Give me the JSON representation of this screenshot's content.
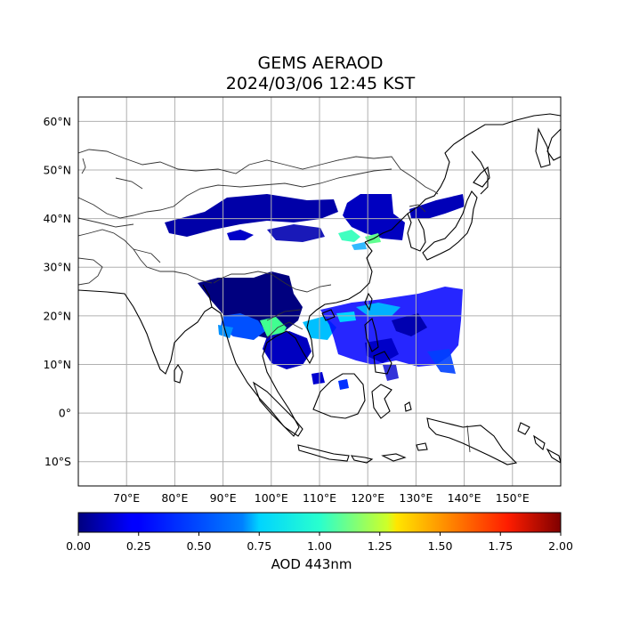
{
  "title": "GEMS AERAOD",
  "subtitle": "2024/03/06 12:45 KST",
  "map": {
    "lon_range": [
      60,
      160
    ],
    "lat_range": [
      -15,
      65
    ],
    "lon_ticks": [
      {
        "value": 70,
        "label": "70°E"
      },
      {
        "value": 80,
        "label": "80°E"
      },
      {
        "value": 90,
        "label": "90°E"
      },
      {
        "value": 100,
        "label": "100°E"
      },
      {
        "value": 110,
        "label": "110°E"
      },
      {
        "value": 120,
        "label": "120°E"
      },
      {
        "value": 130,
        "label": "130°E"
      },
      {
        "value": 140,
        "label": "140°E"
      },
      {
        "value": 150,
        "label": "150°E"
      }
    ],
    "lat_ticks": [
      {
        "value": 60,
        "label": "60°N"
      },
      {
        "value": 50,
        "label": "50°N"
      },
      {
        "value": 40,
        "label": "40°N"
      },
      {
        "value": 30,
        "label": "30°N"
      },
      {
        "value": 20,
        "label": "20°N"
      },
      {
        "value": 10,
        "label": "10°N"
      },
      {
        "value": 0,
        "label": "0°"
      },
      {
        "value": -10,
        "label": "10°S"
      }
    ],
    "grid": true,
    "colormap": "jet"
  },
  "colorbar": {
    "label": "AOD 443nm",
    "min": 0.0,
    "max": 2.0,
    "ticks": [
      "0.00",
      "0.25",
      "0.50",
      "0.75",
      "1.00",
      "1.25",
      "1.50",
      "1.75",
      "2.00"
    ]
  }
}
